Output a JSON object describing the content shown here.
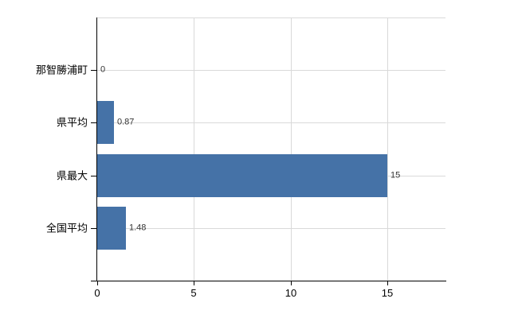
{
  "chart_data": {
    "type": "bar",
    "orientation": "horizontal",
    "title": "",
    "xlabel": "",
    "ylabel": "",
    "categories": [
      "那智勝浦町",
      "県平均",
      "県最大",
      "全国平均"
    ],
    "values": [
      0,
      0.87,
      15,
      1.48
    ],
    "value_labels": [
      "0",
      "0.87",
      "15",
      "1.48"
    ],
    "xlim": [
      0,
      18
    ],
    "x_ticks": [
      0,
      5,
      10,
      15
    ],
    "grid": true,
    "legend_position": "none",
    "bar_color": "#4572a7",
    "grid_color": "#d9d9d9",
    "axis_color": "#000000",
    "category_label_color": "#000000",
    "value_label_color": "#333333",
    "tick_label_color": "#000000",
    "background_color": "#ffffff"
  }
}
